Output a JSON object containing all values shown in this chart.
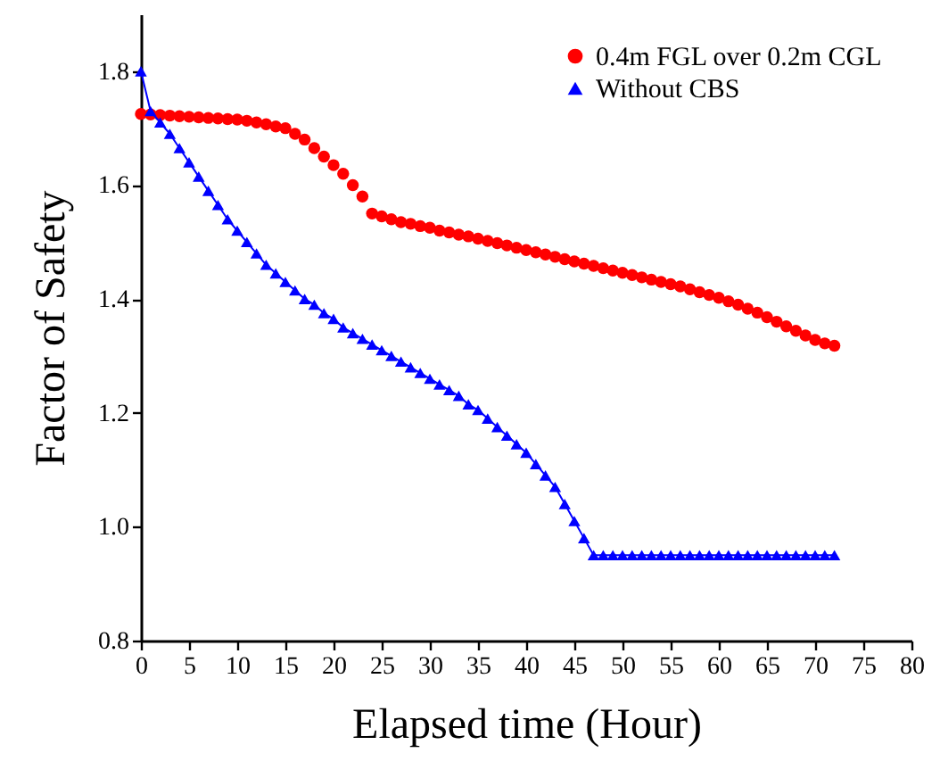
{
  "chart_data": {
    "type": "scatter",
    "xlabel": "Elapsed time (Hour)",
    "ylabel": "Factor of Safety",
    "x": [
      0,
      1,
      2,
      3,
      4,
      5,
      6,
      7,
      8,
      9,
      10,
      11,
      12,
      13,
      14,
      15,
      16,
      17,
      18,
      19,
      20,
      21,
      22,
      23,
      24,
      25,
      26,
      27,
      28,
      29,
      30,
      31,
      32,
      33,
      34,
      35,
      36,
      37,
      38,
      39,
      40,
      41,
      42,
      43,
      44,
      45,
      46,
      47,
      48,
      49,
      50,
      51,
      52,
      53,
      54,
      55,
      56,
      57,
      58,
      59,
      60,
      61,
      62,
      63,
      64,
      65,
      66,
      67,
      68,
      69,
      70,
      71,
      72
    ],
    "series": [
      {
        "name": "0.4m FGL over 0.2m CGL",
        "marker": "circle",
        "color": "#ff0000",
        "values": [
          1.725,
          1.724,
          1.723,
          1.722,
          1.721,
          1.72,
          1.719,
          1.718,
          1.717,
          1.716,
          1.715,
          1.713,
          1.71,
          1.707,
          1.703,
          1.7,
          1.69,
          1.68,
          1.665,
          1.65,
          1.635,
          1.62,
          1.6,
          1.58,
          1.55,
          1.545,
          1.54,
          1.535,
          1.532,
          1.528,
          1.525,
          1.52,
          1.517,
          1.513,
          1.51,
          1.506,
          1.502,
          1.498,
          1.494,
          1.49,
          1.486,
          1.482,
          1.478,
          1.474,
          1.47,
          1.466,
          1.462,
          1.458,
          1.454,
          1.45,
          1.446,
          1.442,
          1.438,
          1.434,
          1.43,
          1.426,
          1.422,
          1.417,
          1.412,
          1.407,
          1.402,
          1.396,
          1.39,
          1.383,
          1.376,
          1.368,
          1.36,
          1.352,
          1.344,
          1.336,
          1.328,
          1.322,
          1.318
        ]
      },
      {
        "name": "Without CBS",
        "type": "line",
        "marker": "triangle",
        "color": "#0000ff",
        "values": [
          1.8,
          1.73,
          1.71,
          1.69,
          1.665,
          1.64,
          1.615,
          1.59,
          1.565,
          1.54,
          1.52,
          1.5,
          1.48,
          1.46,
          1.445,
          1.43,
          1.415,
          1.4,
          1.39,
          1.375,
          1.365,
          1.35,
          1.34,
          1.33,
          1.32,
          1.31,
          1.3,
          1.29,
          1.28,
          1.27,
          1.26,
          1.25,
          1.24,
          1.23,
          1.215,
          1.205,
          1.19,
          1.175,
          1.16,
          1.145,
          1.13,
          1.11,
          1.09,
          1.07,
          1.04,
          1.01,
          0.98,
          0.95,
          0.95,
          0.95,
          0.95,
          0.95,
          0.95,
          0.95,
          0.95,
          0.95,
          0.95,
          0.95,
          0.95,
          0.95,
          0.95,
          0.95,
          0.95,
          0.95,
          0.95,
          0.95,
          0.95,
          0.95,
          0.95,
          0.95,
          0.95,
          0.95,
          0.95
        ]
      }
    ],
    "xlim": [
      0,
      80
    ],
    "xticks": [
      0,
      5,
      10,
      15,
      20,
      25,
      30,
      35,
      40,
      45,
      50,
      55,
      60,
      65,
      70,
      75,
      80
    ],
    "ylim": [
      0.8,
      1.9
    ],
    "yticks": [
      0.8,
      {
        "value": 1,
        "label": "1.0"
      },
      1.2,
      1.4,
      1.6,
      1.8
    ],
    "grid": false,
    "legend": "top right"
  }
}
